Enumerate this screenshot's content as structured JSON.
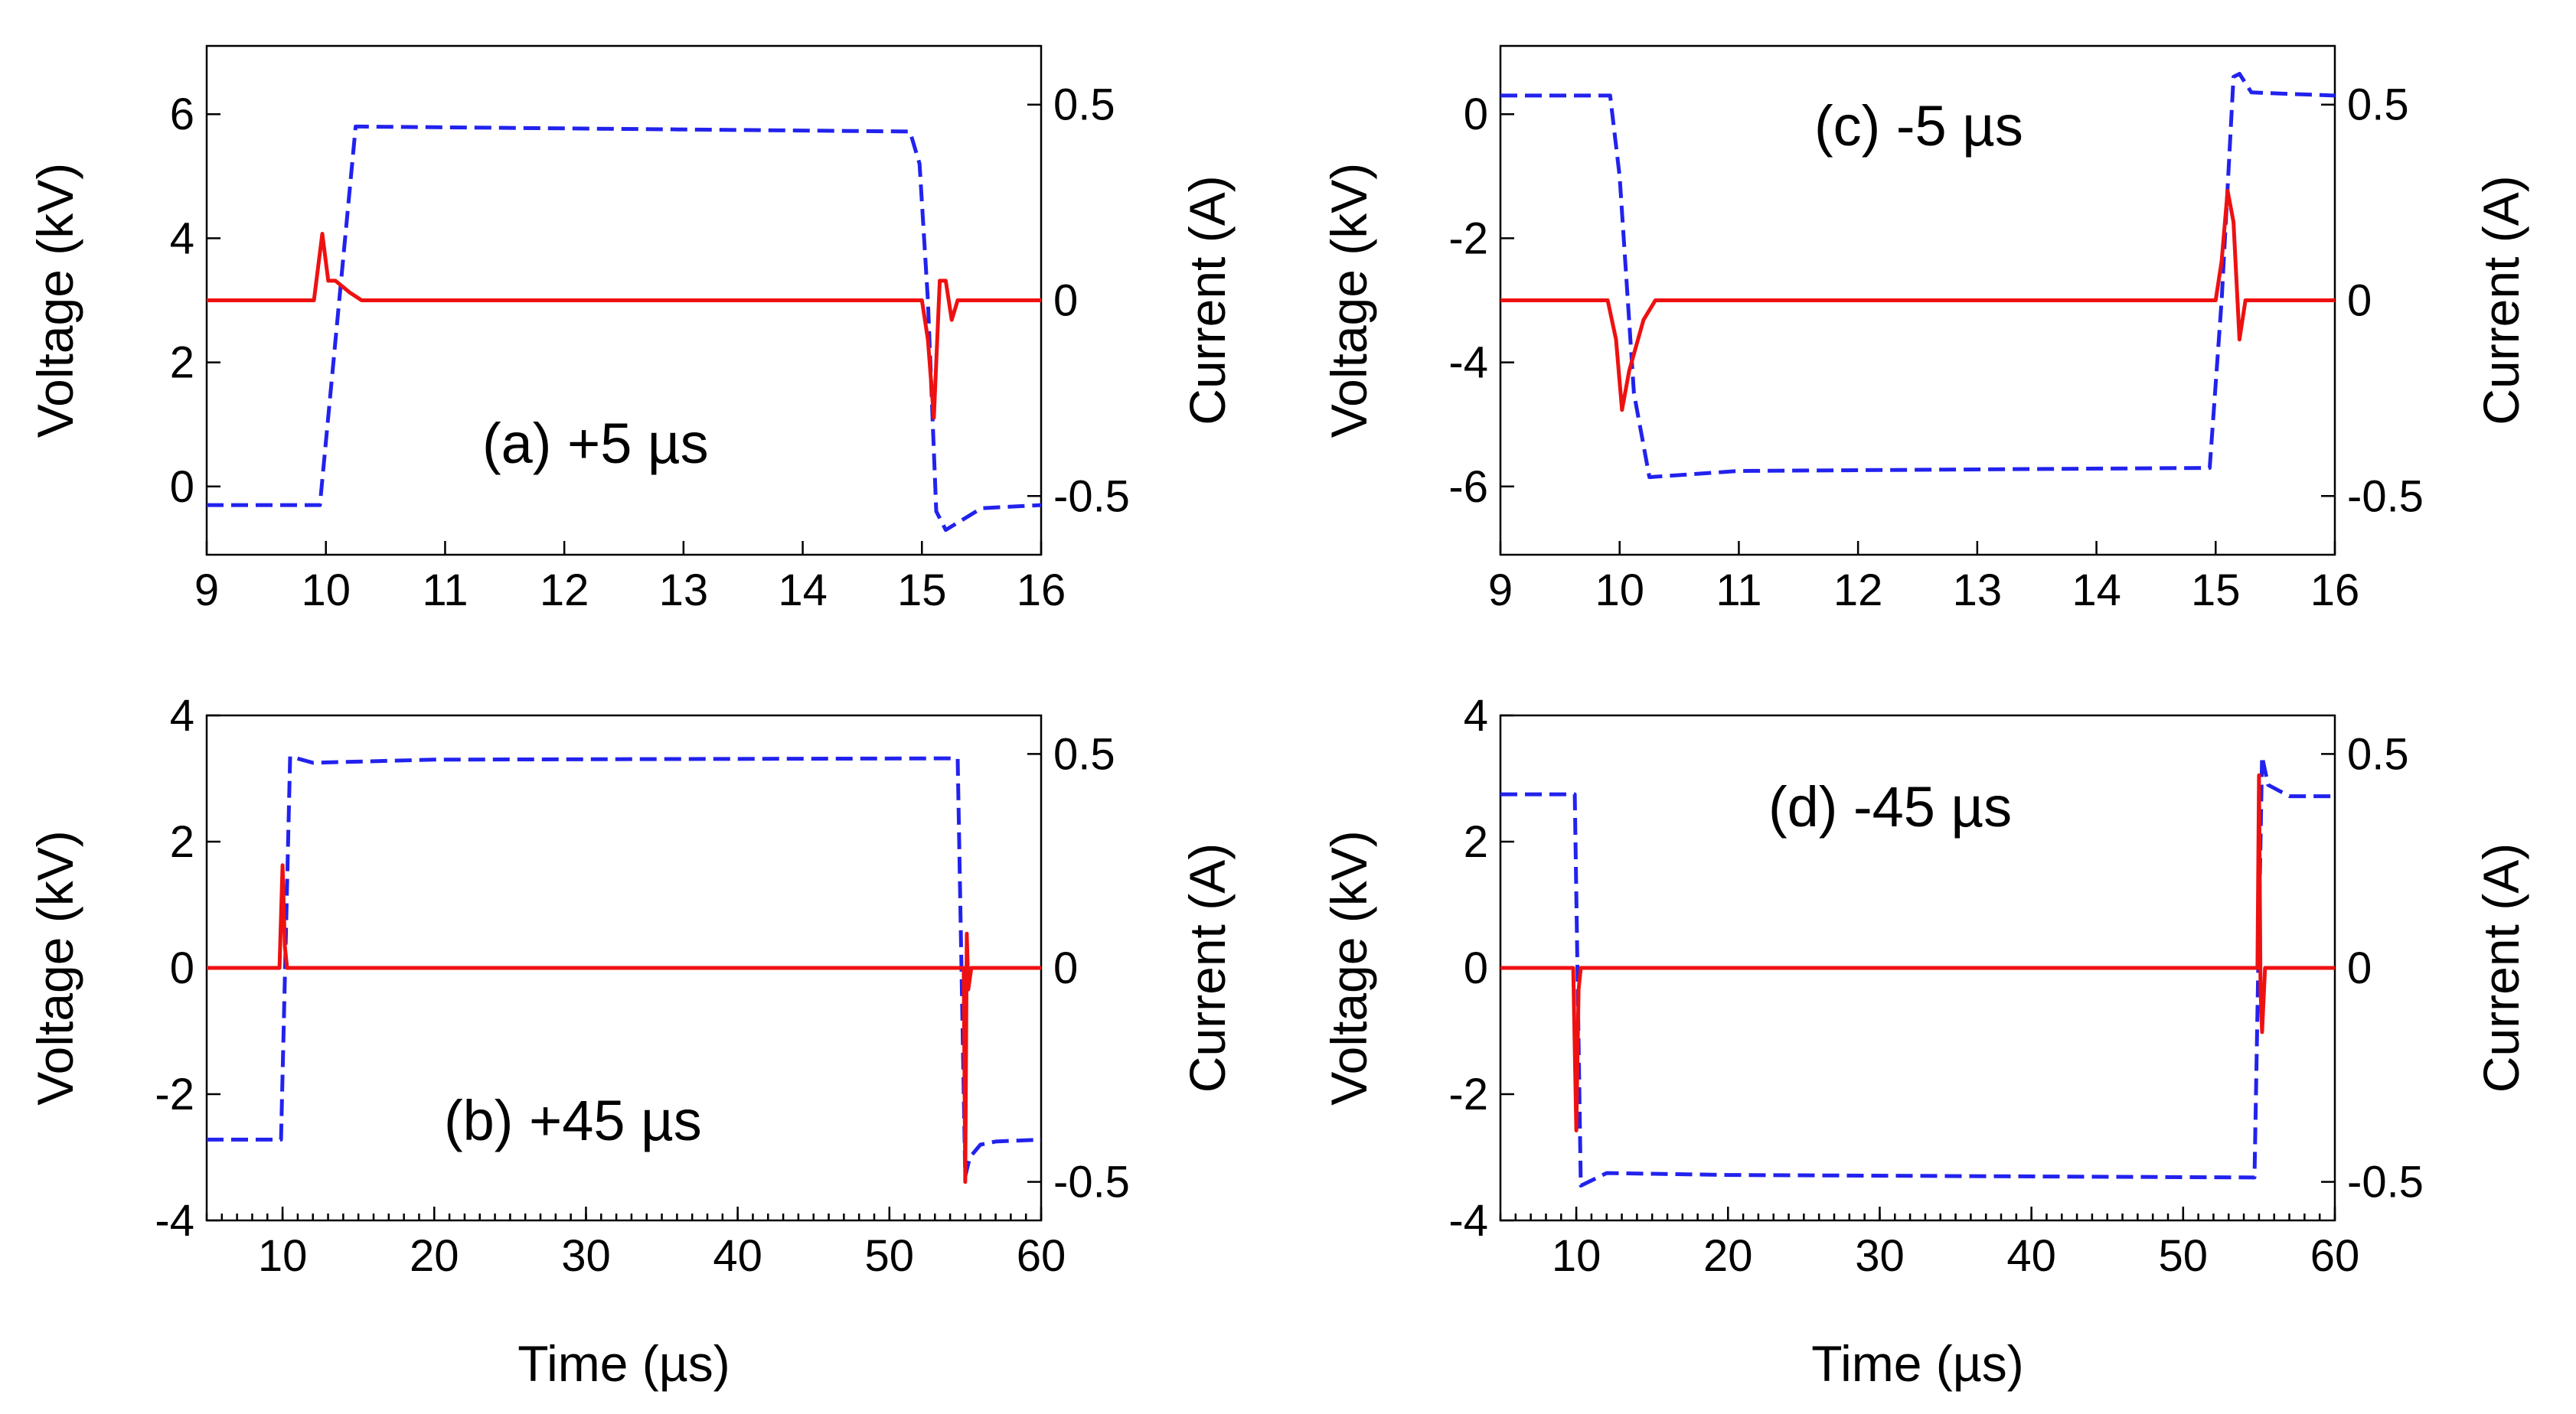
{
  "colors": {
    "voltage": "#2222ee",
    "current": "#ee1111"
  },
  "chart_data": [
    {
      "id": "a",
      "type": "line",
      "panel_label": "(a) +5 µs",
      "xlabel": "",
      "ylabel": "Voltage (kV)",
      "ylabel_right": "Current (A)",
      "xlim": [
        9,
        16
      ],
      "ylim": [
        -1.1,
        7.1
      ],
      "ylim_right": [
        -0.65,
        0.65
      ],
      "xticks": [
        9,
        10,
        11,
        12,
        13,
        14,
        15,
        16
      ],
      "xtick_labels": [
        "9",
        "10",
        "11",
        "12",
        "13",
        "14",
        "15",
        "16"
      ],
      "yticks": [
        0,
        2,
        4,
        6
      ],
      "ytick_labels": [
        "0",
        "2",
        "4",
        "6"
      ],
      "yticks_right": [
        -0.5,
        0,
        0.5
      ],
      "ytick_labels_right": [
        "-0.5",
        "0",
        "0.5"
      ],
      "series": [
        {
          "name": "Voltage",
          "axis": "left",
          "style": "dashed",
          "x": [
            9,
            9.95,
            10.25,
            10.3,
            14.9,
            14.98,
            15.05,
            15.12,
            15.2,
            15.5,
            16
          ],
          "y": [
            -0.3,
            -0.3,
            5.8,
            5.8,
            5.72,
            5.2,
            3.0,
            -0.4,
            -0.7,
            -0.35,
            -0.3
          ]
        },
        {
          "name": "Current",
          "axis": "right",
          "style": "solid",
          "x": [
            9,
            9.9,
            9.97,
            10.02,
            10.08,
            10.2,
            10.3,
            10.5,
            15.0,
            15.05,
            15.1,
            15.15,
            15.2,
            15.25,
            15.3,
            15.4,
            16
          ],
          "y": [
            0,
            0,
            0.17,
            0.05,
            0.05,
            0.02,
            0,
            0,
            0,
            -0.1,
            -0.3,
            0.05,
            0.05,
            -0.05,
            0,
            0,
            0
          ]
        }
      ]
    },
    {
      "id": "b",
      "type": "line",
      "panel_label": "(b) +45 µs",
      "xlabel": "Time (µs)",
      "ylabel": "Voltage (kV)",
      "ylabel_right": "Current (A)",
      "xlim": [
        5,
        60
      ],
      "ylim": [
        -4,
        4
      ],
      "ylim_right": [
        -0.59,
        0.59
      ],
      "xticks": [
        10,
        20,
        30,
        40,
        50,
        60
      ],
      "xtick_labels": [
        "10",
        "20",
        "30",
        "40",
        "50",
        "60"
      ],
      "minor_xtick_step": 1,
      "yticks": [
        -4,
        -2,
        0,
        2,
        4
      ],
      "ytick_labels": [
        "-4",
        "-2",
        "0",
        "2",
        "4"
      ],
      "yticks_right": [
        -0.5,
        0,
        0.5
      ],
      "ytick_labels_right": [
        "-0.5",
        "0",
        "0.5"
      ],
      "series": [
        {
          "name": "Voltage",
          "axis": "left",
          "style": "dashed",
          "x": [
            5,
            9.9,
            10.5,
            12,
            20,
            54.5,
            55,
            55.3,
            56,
            57,
            60
          ],
          "y": [
            -2.72,
            -2.72,
            3.35,
            3.25,
            3.3,
            3.32,
            -3.3,
            -3.0,
            -2.8,
            -2.75,
            -2.72
          ]
        },
        {
          "name": "Current",
          "axis": "right",
          "style": "solid",
          "x": [
            5,
            9.8,
            10,
            10.15,
            10.3,
            54.9,
            55.0,
            55.1,
            55.2,
            55.4,
            60
          ],
          "y": [
            0,
            0,
            0.24,
            0.05,
            0,
            0,
            -0.5,
            0.08,
            -0.05,
            0,
            0
          ]
        }
      ]
    },
    {
      "id": "c",
      "type": "line",
      "panel_label": "(c) -5 µs",
      "xlabel": "",
      "ylabel": "Voltage (kV)",
      "ylabel_right": "Current (A)",
      "xlim": [
        9,
        16
      ],
      "ylim": [
        -7.1,
        1.1
      ],
      "ylim_right": [
        -0.65,
        0.65
      ],
      "xticks": [
        9,
        10,
        11,
        12,
        13,
        14,
        15,
        16
      ],
      "xtick_labels": [
        "9",
        "10",
        "11",
        "12",
        "13",
        "14",
        "15",
        "16"
      ],
      "yticks": [
        -6,
        -4,
        -2,
        0
      ],
      "ytick_labels": [
        "-6",
        "-4",
        "-2",
        "0"
      ],
      "yticks_right": [
        -0.5,
        0,
        0.5
      ],
      "ytick_labels_right": [
        "-0.5",
        "0",
        "0.5"
      ],
      "series": [
        {
          "name": "Voltage",
          "axis": "left",
          "style": "dashed",
          "x": [
            9,
            9.92,
            10.0,
            10.12,
            10.25,
            11,
            14.95,
            15.05,
            15.15,
            15.2,
            15.3,
            16
          ],
          "y": [
            0.3,
            0.3,
            -1.0,
            -4.5,
            -5.85,
            -5.75,
            -5.7,
            -3.0,
            0.6,
            0.65,
            0.35,
            0.3
          ]
        },
        {
          "name": "Current",
          "axis": "right",
          "style": "solid",
          "x": [
            9,
            9.9,
            9.97,
            10.02,
            10.08,
            10.2,
            10.3,
            15.0,
            15.05,
            15.1,
            15.15,
            15.2,
            15.25,
            15.3,
            16
          ],
          "y": [
            0,
            0,
            -0.1,
            -0.28,
            -0.18,
            -0.05,
            0,
            0,
            0.1,
            0.28,
            0.2,
            -0.1,
            0,
            0,
            0
          ]
        }
      ]
    },
    {
      "id": "d",
      "type": "line",
      "panel_label": "(d) -45 µs",
      "xlabel": "Time (µs)",
      "ylabel": "Voltage (kV)",
      "ylabel_right": "Current (A)",
      "xlim": [
        5,
        60
      ],
      "ylim": [
        -4,
        4
      ],
      "ylim_right": [
        -0.59,
        0.59
      ],
      "xticks": [
        10,
        20,
        30,
        40,
        50,
        60
      ],
      "xtick_labels": [
        "10",
        "20",
        "30",
        "40",
        "50",
        "60"
      ],
      "minor_xtick_step": 1,
      "yticks": [
        -4,
        -2,
        0,
        2,
        4
      ],
      "ytick_labels": [
        "-4",
        "-2",
        "0",
        "2",
        "4"
      ],
      "yticks_right": [
        -0.5,
        0,
        0.5
      ],
      "ytick_labels_right": [
        "-0.5",
        "0",
        "0.5"
      ],
      "series": [
        {
          "name": "Voltage",
          "axis": "left",
          "style": "dashed",
          "x": [
            5,
            9.9,
            10.3,
            12,
            20,
            54.7,
            55.2,
            55.6,
            57,
            60
          ],
          "y": [
            2.75,
            2.75,
            -3.45,
            -3.25,
            -3.28,
            -3.32,
            3.35,
            2.9,
            2.72,
            2.72
          ]
        },
        {
          "name": "Current",
          "axis": "right",
          "style": "solid",
          "x": [
            5,
            9.8,
            10.0,
            10.15,
            10.3,
            54.9,
            55.0,
            55.1,
            55.2,
            55.4,
            60
          ],
          "y": [
            0,
            0,
            -0.38,
            -0.05,
            0,
            0,
            0.45,
            -0.05,
            -0.15,
            0,
            0
          ]
        }
      ]
    }
  ]
}
